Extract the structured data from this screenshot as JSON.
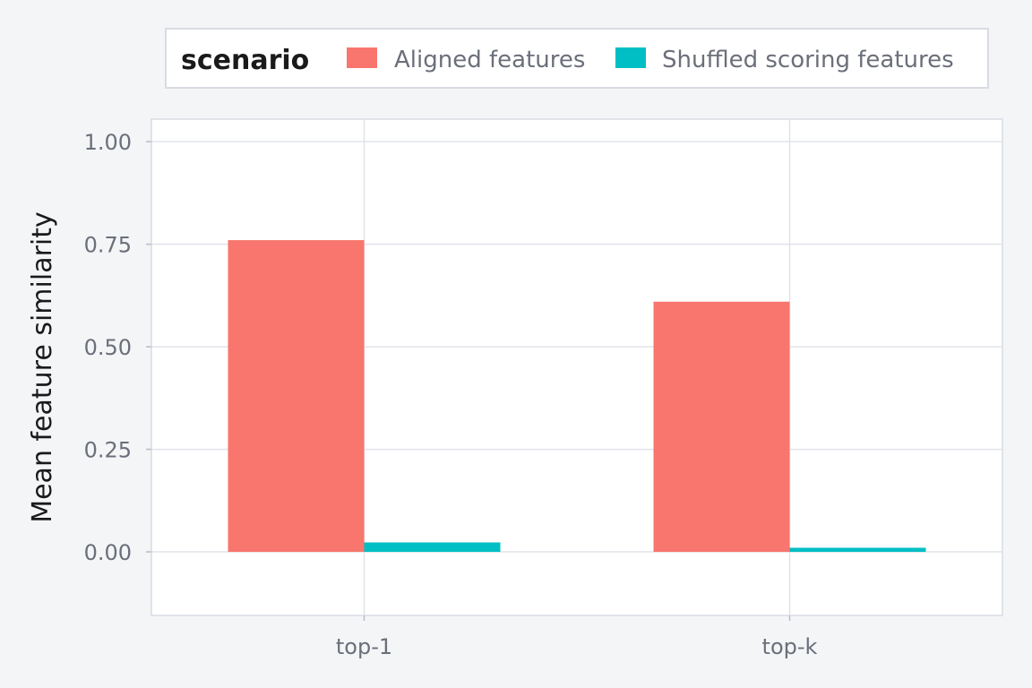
{
  "chart_data": {
    "type": "bar",
    "categories": [
      "top-1",
      "top-k"
    ],
    "series": [
      {
        "name": "Aligned features",
        "values": [
          0.76,
          0.61
        ],
        "color": "#f8766d"
      },
      {
        "name": "Shuffled scoring features",
        "values": [
          0.023,
          0.01
        ],
        "color": "#00bfc4"
      }
    ],
    "ylabel": "Mean feature similarity",
    "xlabel": "",
    "ylim": [
      -0.155,
      1.055
    ],
    "yticks": [
      0,
      0.25,
      0.5,
      0.75,
      1.0
    ],
    "ytick_labels": [
      "0.00",
      "0.25",
      "0.50",
      "0.75",
      "1.00"
    ],
    "legend": {
      "title": "scenario",
      "position": "top"
    },
    "grid": true
  }
}
